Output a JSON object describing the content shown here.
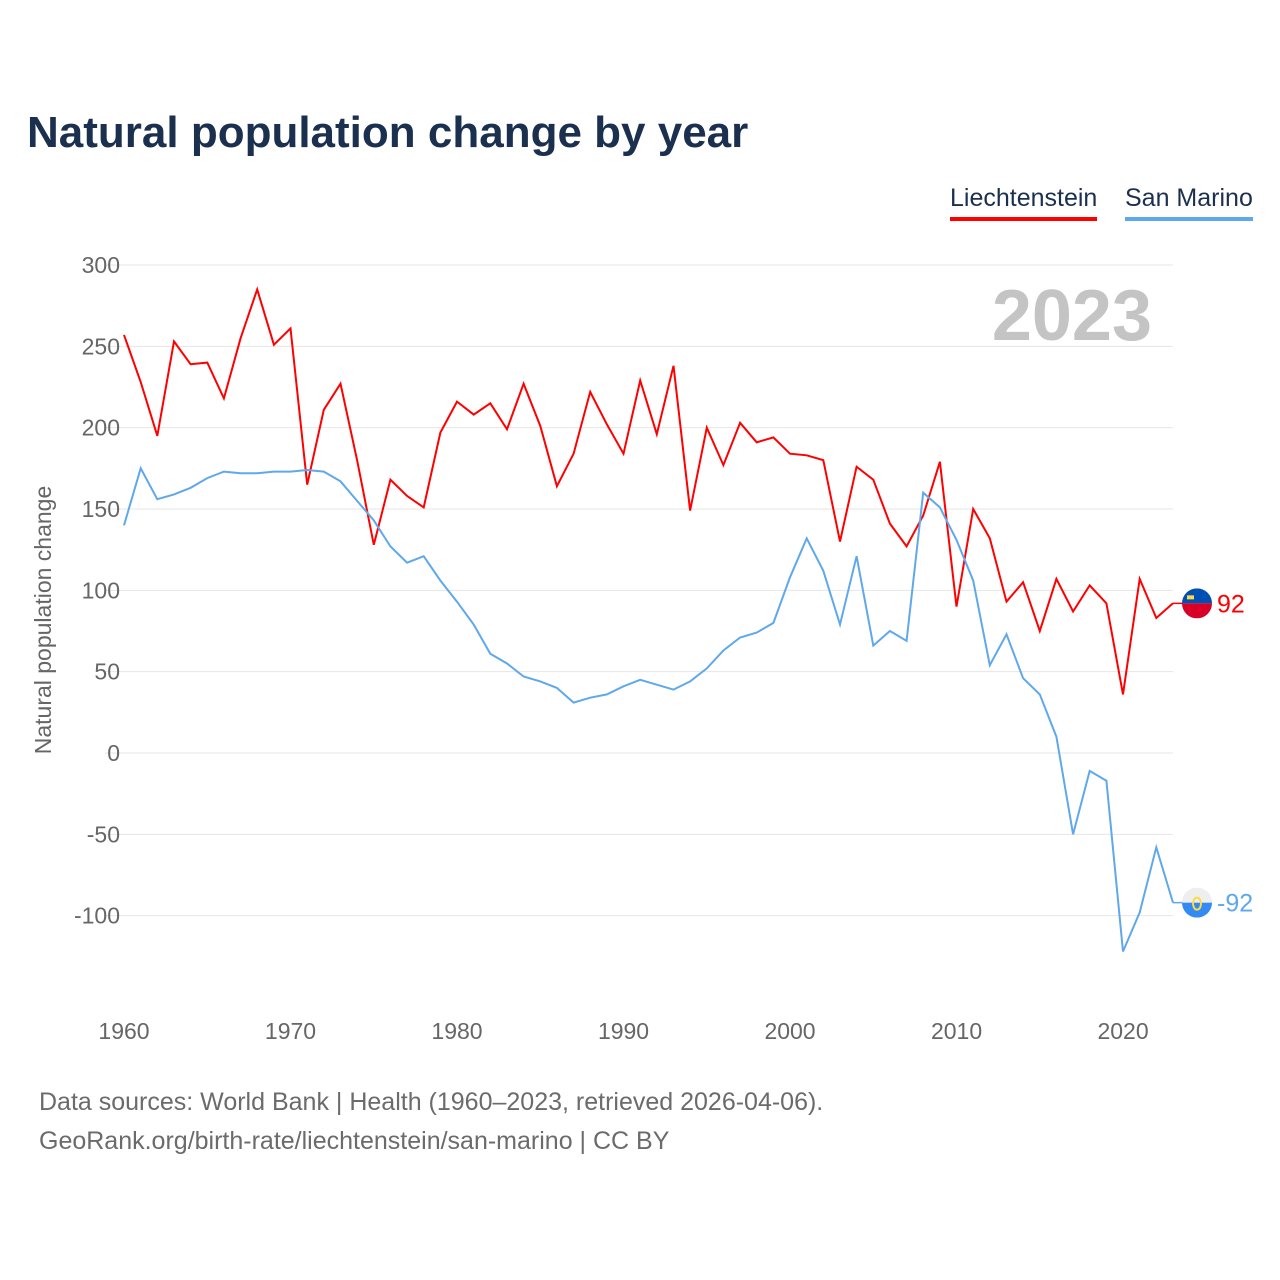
{
  "chart_data": {
    "type": "line",
    "title": "Natural population change by year",
    "ylabel": "Natural population change",
    "xlabel": "",
    "year_label": "2023",
    "x": [
      1960,
      1961,
      1962,
      1963,
      1964,
      1965,
      1966,
      1967,
      1968,
      1969,
      1970,
      1971,
      1972,
      1973,
      1974,
      1975,
      1976,
      1977,
      1978,
      1979,
      1980,
      1981,
      1982,
      1983,
      1984,
      1985,
      1986,
      1987,
      1988,
      1989,
      1990,
      1991,
      1992,
      1993,
      1994,
      1995,
      1996,
      1997,
      1998,
      1999,
      2000,
      2001,
      2002,
      2003,
      2004,
      2005,
      2006,
      2007,
      2008,
      2009,
      2010,
      2011,
      2012,
      2013,
      2014,
      2015,
      2016,
      2017,
      2018,
      2019,
      2020,
      2021,
      2022,
      2023
    ],
    "series": [
      {
        "name": "Liechtenstein",
        "color": "#ff0000",
        "end_label": "92",
        "values": [
          257,
          228,
          195,
          253,
          239,
          240,
          218,
          255,
          285,
          251,
          261,
          165,
          211,
          227,
          180,
          128,
          168,
          158,
          151,
          197,
          216,
          208,
          215,
          199,
          227,
          201,
          164,
          184,
          222,
          202,
          184,
          229,
          196,
          238,
          149,
          200,
          177,
          203,
          191,
          194,
          184,
          183,
          180,
          130,
          176,
          168,
          141,
          127,
          146,
          179,
          90,
          150,
          132,
          93,
          105,
          75,
          107,
          87,
          103,
          92,
          36,
          107,
          83,
          92
        ]
      },
      {
        "name": "San Marino",
        "color": "#5fa8ec",
        "end_label": "-92",
        "values": [
          140,
          175,
          156,
          159,
          163,
          169,
          173,
          172,
          172,
          173,
          173,
          174,
          173,
          167,
          155,
          143,
          127,
          117,
          121,
          106,
          93,
          79,
          61,
          55,
          47,
          44,
          40,
          31,
          34,
          36,
          41,
          45,
          42,
          39,
          44,
          52,
          63,
          71,
          74,
          80,
          108,
          132,
          112,
          79,
          121,
          66,
          75,
          69,
          160,
          151,
          131,
          106,
          54,
          73,
          46,
          36,
          10,
          -50,
          -11,
          -17,
          -122,
          -98,
          -58,
          -92
        ]
      }
    ],
    "yticks": [
      "300",
      "250",
      "200",
      "150",
      "100",
      "50",
      "0",
      "-50",
      "-100"
    ],
    "ytick_values": [
      300,
      250,
      200,
      150,
      100,
      50,
      0,
      -50,
      -100
    ],
    "xticks": [
      "1960",
      "1970",
      "1980",
      "1990",
      "2000",
      "2010",
      "2020"
    ],
    "xtick_values": [
      1960,
      1970,
      1980,
      1990,
      2000,
      2010,
      2020
    ],
    "ylim": [
      -150,
      300
    ],
    "xlim": [
      1960,
      2023
    ],
    "grid": true,
    "legend_position": "top-right"
  },
  "footer": {
    "line1": "Data sources: World Bank | Health (1960–2023, retrieved 2026-04-06).",
    "line2": "GeoRank.org/birth-rate/liechtenstein/san-marino | CC BY"
  }
}
